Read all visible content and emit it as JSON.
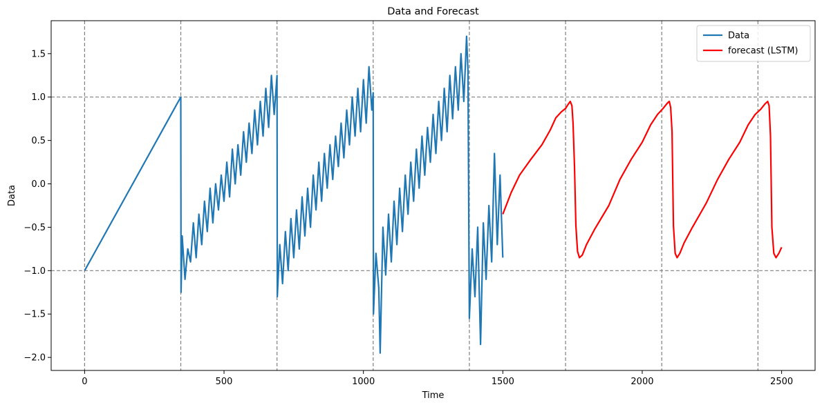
{
  "chart_data": {
    "type": "line",
    "title": "Data and Forecast",
    "xlabel": "Time",
    "ylabel": "Data",
    "xlim": [
      -120,
      2620
    ],
    "ylim": [
      -2.15,
      1.88
    ],
    "xticks": [
      0,
      500,
      1000,
      1500,
      2000,
      2500
    ],
    "xtick_labels": [
      "0",
      "500",
      "1000",
      "1500",
      "2000",
      "2500"
    ],
    "yticks": [
      -2.0,
      -1.5,
      -1.0,
      -0.5,
      0.0,
      0.5,
      1.0,
      1.5
    ],
    "ytick_labels": [
      "−2.0",
      "−1.5",
      "−1.0",
      "−0.5",
      "0.0",
      "0.5",
      "1.0",
      "1.5"
    ],
    "grid": false,
    "legend_position": "top-right",
    "reference_lines": {
      "horizontal": [
        1.0,
        -1.0
      ],
      "vertical": [
        0,
        345,
        690,
        1035,
        1380,
        1725,
        2070,
        2415
      ],
      "color": "#808080",
      "style": "dashed"
    },
    "series": [
      {
        "name": "Data",
        "color": "#1f77b4",
        "points": [
          [
            0,
            -1.0
          ],
          [
            345,
            1.0
          ],
          [
            346,
            -1.25
          ],
          [
            350,
            -0.6
          ],
          [
            360,
            -1.1
          ],
          [
            370,
            -0.75
          ],
          [
            380,
            -0.9
          ],
          [
            390,
            -0.45
          ],
          [
            400,
            -0.85
          ],
          [
            410,
            -0.35
          ],
          [
            420,
            -0.7
          ],
          [
            430,
            -0.2
          ],
          [
            440,
            -0.55
          ],
          [
            450,
            -0.05
          ],
          [
            460,
            -0.45
          ],
          [
            470,
            0.0
          ],
          [
            480,
            -0.3
          ],
          [
            490,
            0.1
          ],
          [
            500,
            -0.2
          ],
          [
            510,
            0.25
          ],
          [
            520,
            -0.15
          ],
          [
            530,
            0.4
          ],
          [
            540,
            0.0
          ],
          [
            550,
            0.45
          ],
          [
            560,
            0.1
          ],
          [
            570,
            0.6
          ],
          [
            580,
            0.25
          ],
          [
            590,
            0.7
          ],
          [
            600,
            0.35
          ],
          [
            610,
            0.85
          ],
          [
            620,
            0.45
          ],
          [
            630,
            0.95
          ],
          [
            640,
            0.55
          ],
          [
            650,
            1.1
          ],
          [
            660,
            0.65
          ],
          [
            670,
            1.25
          ],
          [
            680,
            0.8
          ],
          [
            690,
            1.25
          ],
          [
            691,
            -1.3
          ],
          [
            700,
            -0.7
          ],
          [
            710,
            -1.15
          ],
          [
            720,
            -0.55
          ],
          [
            730,
            -1.0
          ],
          [
            740,
            -0.4
          ],
          [
            750,
            -0.85
          ],
          [
            760,
            -0.3
          ],
          [
            770,
            -0.75
          ],
          [
            780,
            -0.15
          ],
          [
            790,
            -0.6
          ],
          [
            800,
            -0.05
          ],
          [
            810,
            -0.5
          ],
          [
            820,
            0.1
          ],
          [
            830,
            -0.3
          ],
          [
            840,
            0.25
          ],
          [
            850,
            -0.2
          ],
          [
            860,
            0.35
          ],
          [
            870,
            -0.05
          ],
          [
            880,
            0.45
          ],
          [
            890,
            0.05
          ],
          [
            900,
            0.55
          ],
          [
            910,
            0.2
          ],
          [
            920,
            0.7
          ],
          [
            930,
            0.3
          ],
          [
            940,
            0.85
          ],
          [
            950,
            0.45
          ],
          [
            960,
            1.0
          ],
          [
            970,
            0.55
          ],
          [
            980,
            1.1
          ],
          [
            990,
            0.6
          ],
          [
            1000,
            1.2
          ],
          [
            1010,
            0.7
          ],
          [
            1020,
            1.35
          ],
          [
            1030,
            0.85
          ],
          [
            1035,
            1.05
          ],
          [
            1036,
            -1.5
          ],
          [
            1045,
            -0.8
          ],
          [
            1055,
            -1.2
          ],
          [
            1060,
            -1.95
          ],
          [
            1070,
            -0.5
          ],
          [
            1080,
            -1.05
          ],
          [
            1090,
            -0.35
          ],
          [
            1100,
            -0.9
          ],
          [
            1110,
            -0.2
          ],
          [
            1120,
            -0.7
          ],
          [
            1130,
            -0.05
          ],
          [
            1140,
            -0.55
          ],
          [
            1150,
            0.1
          ],
          [
            1160,
            -0.35
          ],
          [
            1170,
            0.25
          ],
          [
            1180,
            -0.2
          ],
          [
            1190,
            0.4
          ],
          [
            1200,
            -0.05
          ],
          [
            1210,
            0.55
          ],
          [
            1220,
            0.1
          ],
          [
            1230,
            0.65
          ],
          [
            1240,
            0.25
          ],
          [
            1250,
            0.8
          ],
          [
            1260,
            0.35
          ],
          [
            1270,
            0.95
          ],
          [
            1280,
            0.5
          ],
          [
            1290,
            1.1
          ],
          [
            1300,
            0.6
          ],
          [
            1310,
            1.25
          ],
          [
            1320,
            0.75
          ],
          [
            1330,
            1.35
          ],
          [
            1340,
            0.85
          ],
          [
            1350,
            1.5
          ],
          [
            1360,
            0.95
          ],
          [
            1370,
            1.7
          ],
          [
            1375,
            1.3
          ],
          [
            1380,
            -1.55
          ],
          [
            1390,
            -0.75
          ],
          [
            1400,
            -1.3
          ],
          [
            1410,
            -0.5
          ],
          [
            1420,
            -1.85
          ],
          [
            1430,
            -0.45
          ],
          [
            1440,
            -1.1
          ],
          [
            1450,
            -0.25
          ],
          [
            1460,
            -0.9
          ],
          [
            1470,
            0.35
          ],
          [
            1480,
            -0.7
          ],
          [
            1490,
            0.1
          ],
          [
            1500,
            -0.85
          ]
        ]
      },
      {
        "name": "forecast (LSTM)",
        "color": "#ff0000",
        "points": [
          [
            1500,
            -0.35
          ],
          [
            1530,
            -0.1
          ],
          [
            1560,
            0.1
          ],
          [
            1600,
            0.28
          ],
          [
            1640,
            0.45
          ],
          [
            1670,
            0.62
          ],
          [
            1690,
            0.76
          ],
          [
            1710,
            0.83
          ],
          [
            1725,
            0.87
          ],
          [
            1735,
            0.92
          ],
          [
            1742,
            0.95
          ],
          [
            1748,
            0.9
          ],
          [
            1752,
            0.7
          ],
          [
            1757,
            0.2
          ],
          [
            1762,
            -0.48
          ],
          [
            1768,
            -0.78
          ],
          [
            1775,
            -0.85
          ],
          [
            1785,
            -0.82
          ],
          [
            1800,
            -0.7
          ],
          [
            1830,
            -0.52
          ],
          [
            1880,
            -0.25
          ],
          [
            1920,
            0.05
          ],
          [
            1960,
            0.28
          ],
          [
            2000,
            0.48
          ],
          [
            2030,
            0.68
          ],
          [
            2055,
            0.8
          ],
          [
            2075,
            0.87
          ],
          [
            2090,
            0.93
          ],
          [
            2097,
            0.95
          ],
          [
            2102,
            0.88
          ],
          [
            2107,
            0.6
          ],
          [
            2112,
            -0.48
          ],
          [
            2118,
            -0.8
          ],
          [
            2125,
            -0.85
          ],
          [
            2135,
            -0.8
          ],
          [
            2150,
            -0.68
          ],
          [
            2180,
            -0.5
          ],
          [
            2230,
            -0.22
          ],
          [
            2270,
            0.05
          ],
          [
            2310,
            0.28
          ],
          [
            2350,
            0.48
          ],
          [
            2380,
            0.68
          ],
          [
            2405,
            0.8
          ],
          [
            2425,
            0.86
          ],
          [
            2440,
            0.92
          ],
          [
            2450,
            0.95
          ],
          [
            2455,
            0.9
          ],
          [
            2460,
            0.55
          ],
          [
            2465,
            -0.5
          ],
          [
            2472,
            -0.8
          ],
          [
            2480,
            -0.85
          ],
          [
            2490,
            -0.8
          ],
          [
            2500,
            -0.73
          ]
        ]
      }
    ]
  }
}
